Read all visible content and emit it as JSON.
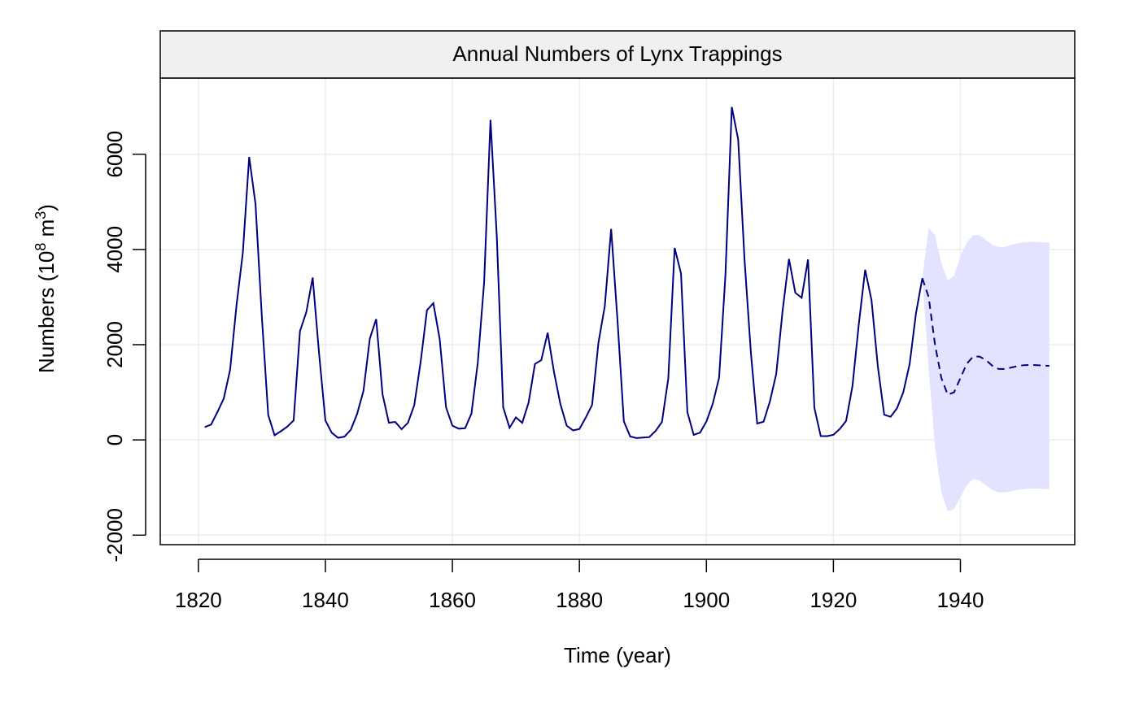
{
  "chart_data": {
    "type": "line",
    "title": "Annual Numbers of Lynx Trappings",
    "xlabel": "Time (year)",
    "ylabel": {
      "prefix": "Numbers (10",
      "exp1": "8",
      "middle": " m",
      "exp2": "3",
      "suffix": ")"
    },
    "xlim": [
      1814,
      1958
    ],
    "ylim": [
      -2200,
      7600
    ],
    "x_ticks": [
      1820,
      1840,
      1860,
      1880,
      1900,
      1920,
      1940
    ],
    "y_ticks": [
      -2000,
      0,
      2000,
      4000,
      6000
    ],
    "grid": true,
    "colors": {
      "observed": "#00007f",
      "forecast": "#00007f",
      "band": "#e3e3ff",
      "grid": "#ececec",
      "strip": "#f0f0f0"
    },
    "series": [
      {
        "style": "solid",
        "x": [
          1821,
          1822,
          1823,
          1824,
          1825,
          1826,
          1827,
          1828,
          1829,
          1830,
          1831,
          1832,
          1833,
          1834,
          1835,
          1836,
          1837,
          1838,
          1839,
          1840,
          1841,
          1842,
          1843,
          1844,
          1845,
          1846,
          1847,
          1848,
          1849,
          1850,
          1851,
          1852,
          1853,
          1854,
          1855,
          1856,
          1857,
          1858,
          1859,
          1860,
          1861,
          1862,
          1863,
          1864,
          1865,
          1866,
          1867,
          1868,
          1869,
          1870,
          1871,
          1872,
          1873,
          1874,
          1875,
          1876,
          1877,
          1878,
          1879,
          1880,
          1881,
          1882,
          1883,
          1884,
          1885,
          1886,
          1887,
          1888,
          1889,
          1890,
          1891,
          1892,
          1893,
          1894,
          1895,
          1896,
          1897,
          1898,
          1899,
          1900,
          1901,
          1902,
          1903,
          1904,
          1905,
          1906,
          1907,
          1908,
          1909,
          1910,
          1911,
          1912,
          1913,
          1914,
          1915,
          1916,
          1917,
          1918,
          1919,
          1920,
          1921,
          1922,
          1923,
          1924,
          1925,
          1926,
          1927,
          1928,
          1929,
          1930,
          1931,
          1932,
          1933,
          1934
        ],
        "values": [
          269,
          321,
          585,
          871,
          1475,
          2821,
          3928,
          5943,
          4950,
          2577,
          523,
          98,
          184,
          279,
          409,
          2285,
          2685,
          3409,
          1824,
          409,
          151,
          45,
          68,
          213,
          546,
          1033,
          2129,
          2536,
          957,
          361,
          377,
          225,
          360,
          731,
          1638,
          2725,
          2871,
          2119,
          684,
          299,
          236,
          245,
          552,
          1623,
          3311,
          6721,
          4254,
          687,
          255,
          473,
          358,
          784,
          1594,
          1676,
          2251,
          1426,
          756,
          299,
          201,
          229,
          469,
          736,
          2042,
          2811,
          4431,
          2511,
          389,
          73,
          39,
          49,
          59,
          188,
          377,
          1292,
          4031,
          3495,
          587,
          105,
          153,
          387,
          758,
          1307,
          3465,
          6991,
          6313,
          3794,
          1836,
          345,
          382,
          808,
          1388,
          2713,
          3800,
          3091,
          2985,
          3790,
          674,
          81,
          80,
          108,
          229,
          399,
          1132,
          2432,
          3574,
          2935,
          1537,
          529,
          485,
          662,
          1000,
          1590,
          2657,
          3396
        ]
      },
      {
        "style": "dashed",
        "x": [
          1934,
          1935,
          1936,
          1937,
          1938,
          1939,
          1940,
          1941,
          1942,
          1943,
          1944,
          1945,
          1946,
          1947,
          1948,
          1949,
          1950,
          1951,
          1952,
          1953,
          1954
        ],
        "values": [
          3396,
          3000,
          2000,
          1300,
          950,
          1000,
          1300,
          1600,
          1750,
          1750,
          1680,
          1560,
          1490,
          1490,
          1520,
          1550,
          1570,
          1575,
          1570,
          1560,
          1555
        ]
      }
    ],
    "band": {
      "x": [
        1934,
        1935,
        1936,
        1937,
        1938,
        1939,
        1940,
        1941,
        1942,
        1943,
        1944,
        1945,
        1946,
        1947,
        1948,
        1949,
        1950,
        1951,
        1952,
        1953,
        1954
      ],
      "upper": [
        3400,
        4450,
        4300,
        3700,
        3350,
        3450,
        3850,
        4150,
        4300,
        4300,
        4200,
        4100,
        4050,
        4050,
        4100,
        4130,
        4150,
        4160,
        4160,
        4150,
        4140
      ],
      "lower": [
        3400,
        1500,
        -150,
        -1100,
        -1500,
        -1450,
        -1200,
        -950,
        -820,
        -850,
        -950,
        -1050,
        -1100,
        -1100,
        -1080,
        -1050,
        -1030,
        -1020,
        -1020,
        -1030,
        -1040
      ]
    }
  }
}
